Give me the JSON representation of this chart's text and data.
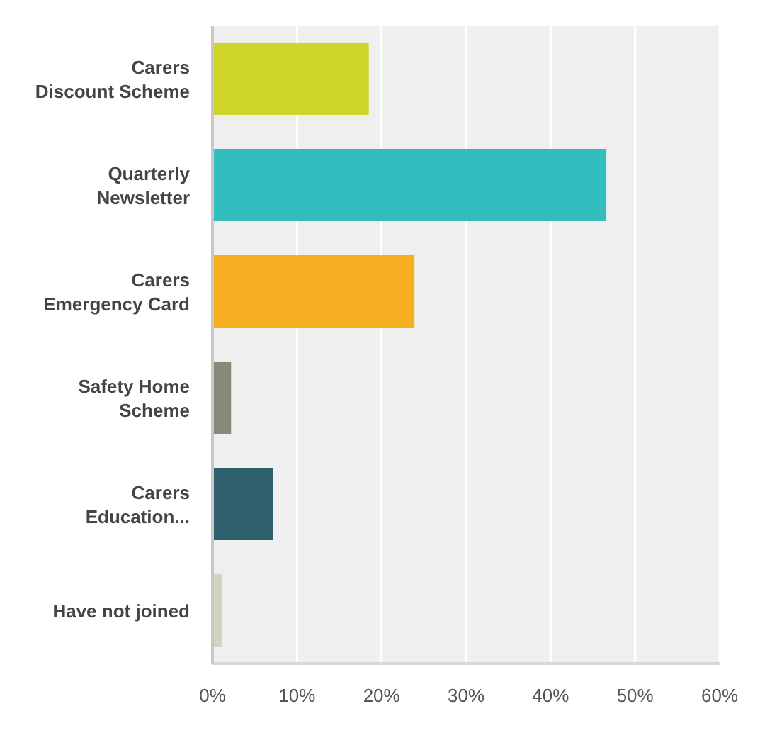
{
  "chart_data": {
    "type": "bar",
    "orientation": "horizontal",
    "categories": [
      "Carers\nDiscount Scheme",
      "Quarterly\nNewsletter",
      "Carers\nEmergency Card",
      "Safety Home\nScheme",
      "Carers\nEducation...",
      "Have not joined"
    ],
    "values": [
      18.5,
      46.6,
      23.9,
      2.2,
      7.2,
      1.1
    ],
    "colors": [
      "#d0d52a",
      "#33bdbf",
      "#f6af21",
      "#878a78",
      "#2e5f6b",
      "#d3d3c3"
    ],
    "xlim": [
      0,
      60
    ],
    "xticks": [
      {
        "value": 0,
        "label": "0%"
      },
      {
        "value": 10,
        "label": "10%"
      },
      {
        "value": 20,
        "label": "20%"
      },
      {
        "value": 30,
        "label": "30%"
      },
      {
        "value": 40,
        "label": "40%"
      },
      {
        "value": 50,
        "label": "50%"
      },
      {
        "value": 60,
        "label": "60%"
      }
    ],
    "grid": "x"
  }
}
